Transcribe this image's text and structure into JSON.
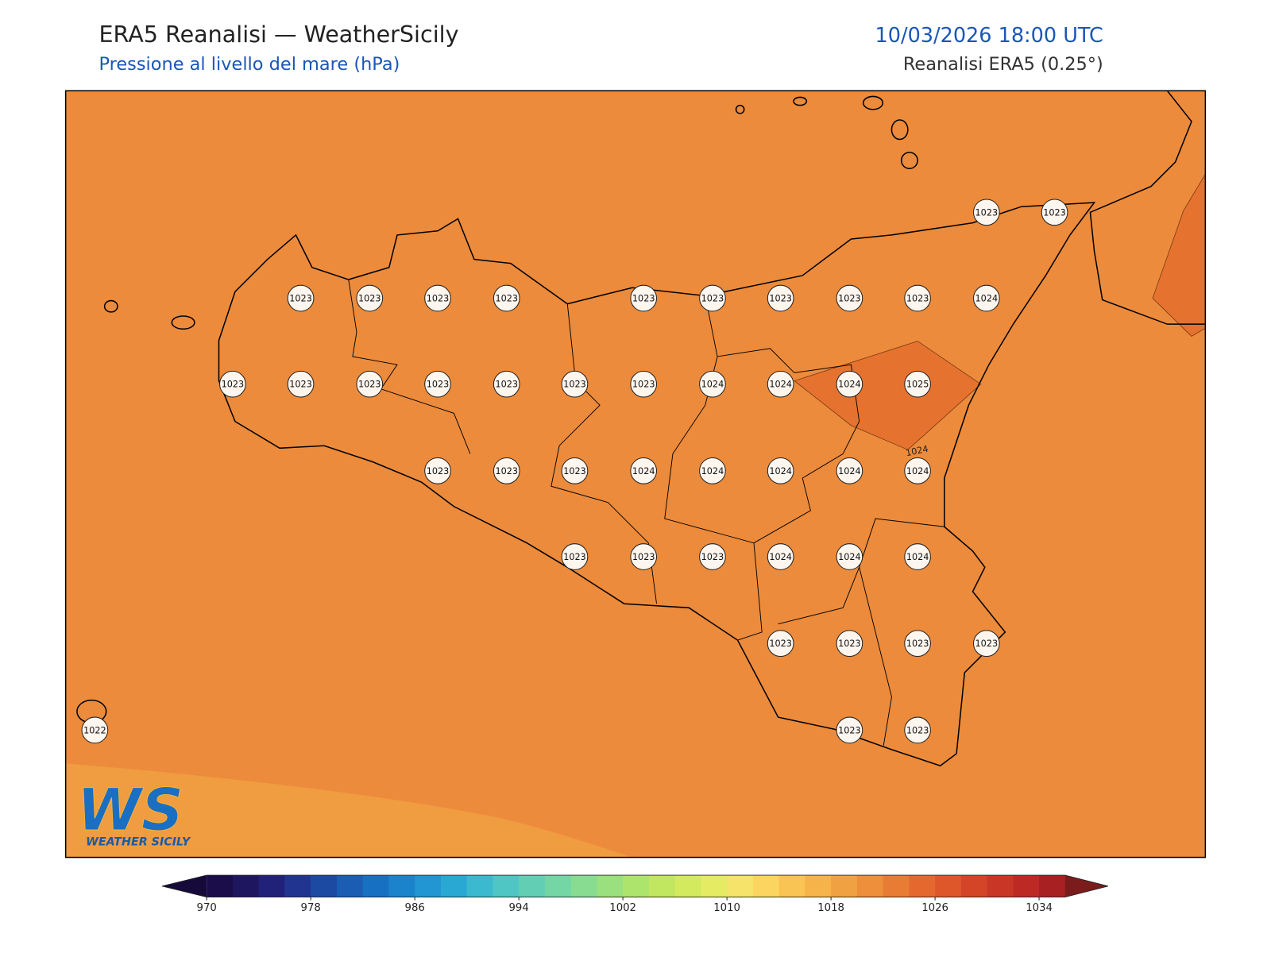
{
  "header": {
    "title": "ERA5 Reanalisi — WeatherSicily",
    "subtitle": "Pressione al livello del mare (hPa)",
    "datetime": "10/03/2026 18:00 UTC",
    "source": "Reanalisi ERA5 (0.25°)"
  },
  "map": {
    "stations": [
      1023,
      1023,
      1023,
      1023,
      1023,
      1023,
      1023,
      1023,
      1023,
      1023,
      1023,
      1024,
      1023,
      1023,
      1023,
      1023,
      1023,
      1023,
      1023,
      1024,
      1024,
      1024,
      1025,
      1023,
      1023,
      1023,
      1024,
      1024,
      1024,
      1024,
      1024,
      1023,
      1023,
      1023,
      1024,
      1024,
      1024,
      1023,
      1023,
      1023,
      1023,
      1022,
      1023,
      1023
    ],
    "contour_label": 1024,
    "logo": {
      "mark": "WS",
      "text": "WEATHER SICILY"
    }
  },
  "colorbar": {
    "range": [
      970,
      1036
    ],
    "ticks": [
      970,
      978,
      986,
      994,
      1002,
      1010,
      1018,
      1026,
      1034
    ],
    "colors": [
      "#1b0c4a",
      "#1f1660",
      "#22217a",
      "#213590",
      "#1c4aa3",
      "#1a5db3",
      "#1870c2",
      "#1a83cc",
      "#2196d3",
      "#2aa8d4",
      "#3bbacf",
      "#4fc6c4",
      "#62cfb5",
      "#74d6a5",
      "#87dc92",
      "#9ae07e",
      "#ade46c",
      "#c1e760",
      "#d3ea5f",
      "#e5eb63",
      "#f6e46a",
      "#fbd55f",
      "#f9c453",
      "#f5b349",
      "#f0a141",
      "#ed8f3b",
      "#e97c35",
      "#e5692f",
      "#de572b",
      "#d44528",
      "#c93626",
      "#bd2a25",
      "#a82022"
    ],
    "under_color": "#150a3a",
    "over_color": "#7a1c1c"
  }
}
